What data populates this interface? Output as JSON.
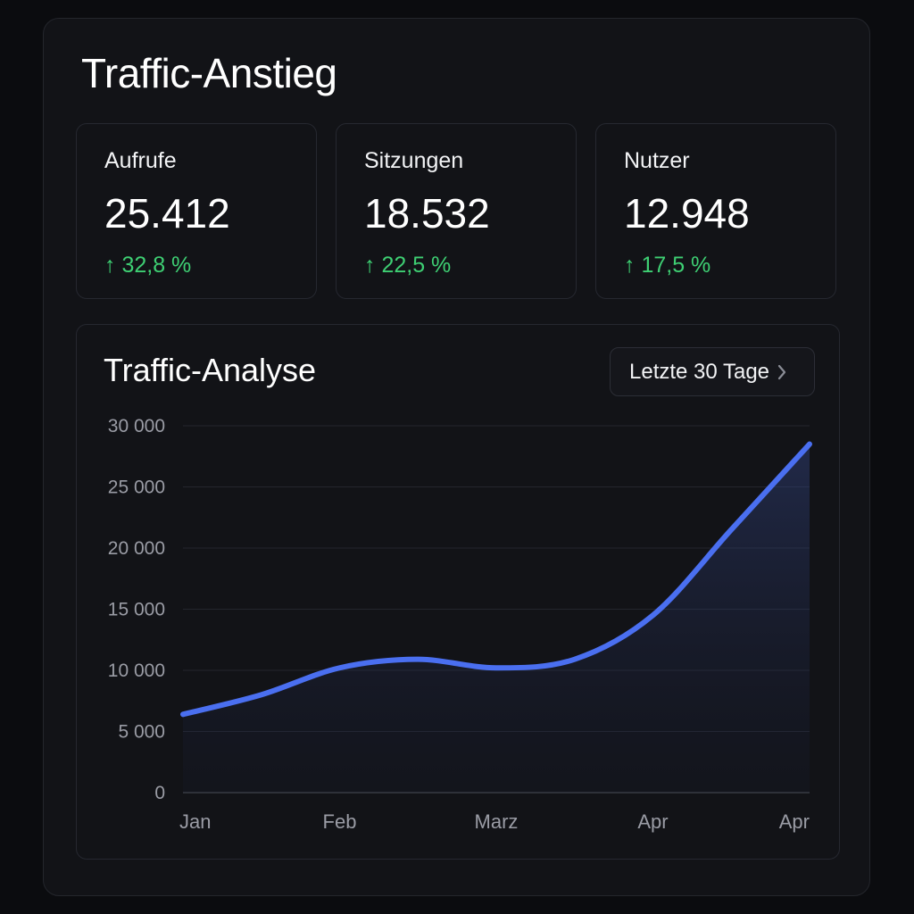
{
  "header": {
    "title": "Traffic-Anstieg"
  },
  "stats": [
    {
      "label": "Aufrufe",
      "value": "25.412",
      "change": "↑ 32,8 %"
    },
    {
      "label": "Sitzungen",
      "value": "18.532",
      "change": "↑ 22,5 %"
    },
    {
      "label": "Nutzer",
      "value": "12.948",
      "change": "↑ 17,5 %"
    }
  ],
  "chart": {
    "title": "Traffic-Analyse",
    "range_label": "Letzte 30 Tage",
    "range_icon": "chevron-right-icon"
  },
  "colors": {
    "accent": "#4a6ff0",
    "positive": "#3ecf73",
    "background": "#121317"
  },
  "chart_data": {
    "type": "area",
    "title": "Traffic-Analyse",
    "xlabel": "",
    "ylabel": "",
    "x_labels": [
      "Jan",
      "Feb",
      "Marz",
      "Apr",
      "Apr"
    ],
    "x": [
      0,
      0.5,
      1,
      1.5,
      2,
      2.5,
      3,
      3.5,
      4
    ],
    "values": [
      6400,
      8000,
      10200,
      10900,
      10200,
      10900,
      14500,
      21500,
      28500
    ],
    "ylim": [
      0,
      30000
    ],
    "y_ticks": [
      0,
      5000,
      10000,
      15000,
      20000,
      25000,
      30000
    ],
    "y_tick_labels": [
      "0",
      "5 000",
      "10 000",
      "15 000",
      "20 000",
      "25 000",
      "30 000"
    ],
    "grid": true,
    "legend": "none"
  }
}
